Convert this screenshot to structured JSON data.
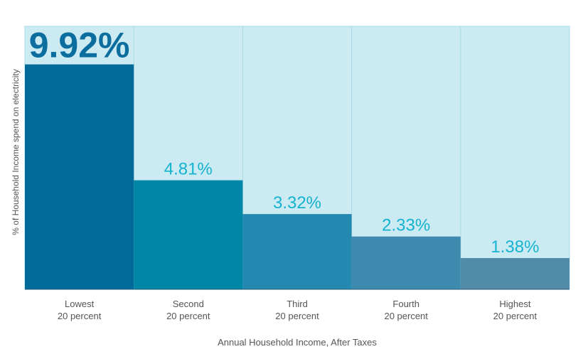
{
  "chart_data": {
    "type": "bar",
    "title": "",
    "xlabel": "Annual Household Income, After Taxes",
    "ylabel": "% of Household Income spend on electricity",
    "categories": [
      [
        "Lowest",
        "20 percent"
      ],
      [
        "Second",
        "20 percent"
      ],
      [
        "Third",
        "20 percent"
      ],
      [
        "Fourth",
        "20 percent"
      ],
      [
        "Highest",
        "20 percent"
      ]
    ],
    "values": [
      9.92,
      4.81,
      3.32,
      2.33,
      1.38
    ],
    "value_labels": [
      "9.92%",
      "4.81%",
      "3.32%",
      "2.33%",
      "1.38%"
    ],
    "ylim": [
      0,
      11.6
    ],
    "grid": false,
    "colors": {
      "background": "#cbeaf2",
      "bars": [
        "#006b9b",
        "#0087a8",
        "#2489b0",
        "#3d8aae",
        "#528aa9"
      ],
      "label_highlight": "#0c6e9e",
      "label": "#16b3d0",
      "divider": "#a6dbe8"
    }
  }
}
